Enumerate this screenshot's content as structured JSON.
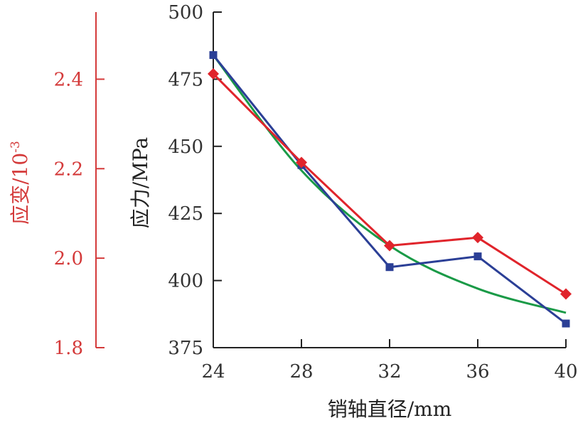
{
  "chart_data": {
    "type": "line",
    "xlabel": "销轴直径/mm",
    "ylabel": "应力/MPa",
    "y2label": "应变/10",
    "y2label_exp": "-3",
    "x": [
      24,
      28,
      32,
      36,
      40
    ],
    "xlim": [
      24,
      40
    ],
    "xticks": [
      "24",
      "28",
      "32",
      "36",
      "40"
    ],
    "ylim": [
      375,
      500
    ],
    "yticks": [
      "375",
      "400",
      "425",
      "450",
      "475",
      "500"
    ],
    "y2lim": [
      1.8,
      2.55
    ],
    "y2ticks": [
      "1.8",
      "2.0",
      "2.2",
      "2.4"
    ],
    "y2tick_values": [
      1.8,
      2.0,
      2.2,
      2.4
    ],
    "series": [
      {
        "values": [
          484,
          443,
          405,
          409,
          384
        ],
        "color": "#2b3f96",
        "marker": "square"
      },
      {
        "values": [
          477,
          444,
          413,
          416,
          395
        ],
        "color": "#e0242b",
        "marker": "diamond"
      },
      {
        "values": [
          484,
          441,
          413,
          397,
          388
        ],
        "color": "#1a9a47",
        "marker": "none",
        "curve": "smooth"
      }
    ],
    "colors": {
      "left_axis": "#d43a3a",
      "main_axis": "#222222"
    },
    "grid": false
  }
}
